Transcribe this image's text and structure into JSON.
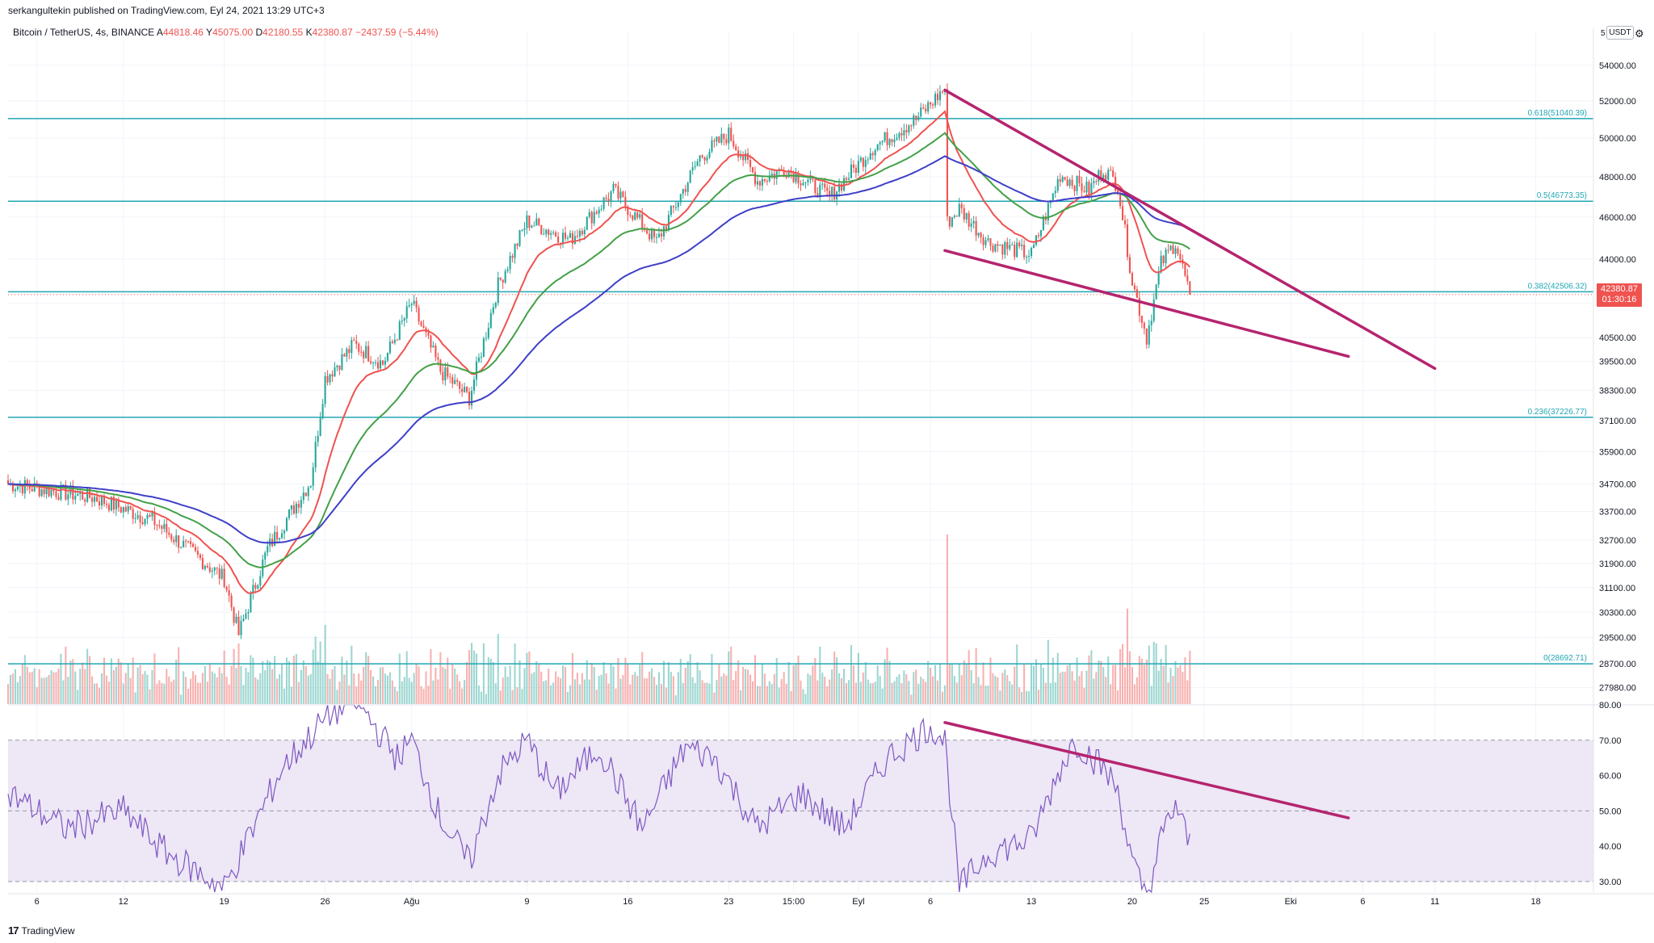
{
  "header": {
    "publisher_text": "serkangultekin published on TradingView.com, Eyl 24, 2021 13:29 UTC+3",
    "symbol": "Bitcoin / TetherUS, 4s, BINANCE",
    "ohlc": {
      "open_label": "A",
      "open": "44818.46",
      "high_label": "Y",
      "high": "45075.00",
      "low_label": "D",
      "low": "42180.55",
      "close_label": "K",
      "close": "42380.87",
      "change": "−2437.59 (−5.44%)"
    }
  },
  "price_axis": {
    "currency": "USDT",
    "scale_top_label": "5",
    "last_price": "42380.87",
    "countdown": "01:30:16"
  },
  "branding": {
    "logo_mark": "17",
    "logo_text": "TradingView"
  },
  "colors": {
    "up": "#26a69a",
    "down": "#ef5350",
    "ema_fast": "#ef5350",
    "ema_mid": "#43a047",
    "ema_slow": "#3f3fc9",
    "fib": "#22a6b3",
    "trend": "#b5246e",
    "rsi": "#7e57c2",
    "rsi_band": "#ede7f6"
  },
  "chart_data": [
    {
      "type": "candlestick",
      "title": "",
      "xlabel": "",
      "ylabel": "",
      "x_ticks": [
        "6",
        "12",
        "19",
        "26",
        "Ağu",
        "9",
        "16",
        "23",
        "15:00",
        "Eyl",
        "6",
        "13",
        "20",
        "25",
        "Eki",
        "6",
        "11",
        "18"
      ],
      "y_ticks": [
        "54000.00",
        "52000.00",
        "50000.00",
        "48000.00",
        "46000.00",
        "44000.00",
        "42000.00",
        "40500.00",
        "39500.00",
        "38300.00",
        "37100.00",
        "35900.00",
        "34700.00",
        "33700.00",
        "32700.00",
        "31900.00",
        "31100.00",
        "30300.00",
        "29500.00",
        "28700.00",
        "27980.00"
      ],
      "y_scale": "log",
      "series": [
        {
          "name": "",
          "kind": "price_path_keypoints",
          "points": [
            [
              "Jul 4",
              34700
            ],
            [
              "Jul 10",
              34200
            ],
            [
              "Jul 14",
              33400
            ],
            [
              "Jul 19",
              31400
            ],
            [
              "Jul 20",
              29600
            ],
            [
              "Jul 22",
              32400
            ],
            [
              "Jul 25",
              34800
            ],
            [
              "Jul 26",
              38800
            ],
            [
              "Jul 28",
              40200
            ],
            [
              "Jul 30",
              39400
            ],
            [
              "Aug 1",
              42000
            ],
            [
              "Aug 3",
              39100
            ],
            [
              "Aug 5",
              38000
            ],
            [
              "Aug 7",
              42800
            ],
            [
              "Aug 9",
              45800
            ],
            [
              "Aug 12",
              44900
            ],
            [
              "Aug 15",
              47300
            ],
            [
              "Aug 18",
              44800
            ],
            [
              "Aug 21",
              49000
            ],
            [
              "Aug 23",
              50200
            ],
            [
              "Aug 25",
              47800
            ],
            [
              "Aug 27",
              48400
            ],
            [
              "Aug 30",
              47000
            ],
            [
              "Sep 2",
              49500
            ],
            [
              "Sep 5",
              51000
            ],
            [
              "Sep 7",
              52700
            ],
            [
              "Sep 7",
              45600
            ],
            [
              "Sep 8",
              46400
            ],
            [
              "Sep 10",
              44800
            ],
            [
              "Sep 13",
              44200
            ],
            [
              "Sep 15",
              48100
            ],
            [
              "Sep 17",
              47300
            ],
            [
              "Sep 18",
              48400
            ],
            [
              "Sep 19",
              47600
            ],
            [
              "Sep 20",
              43000
            ],
            [
              "Sep 21",
              40500
            ],
            [
              "Sep 22",
              43800
            ],
            [
              "Sep 23",
              44800
            ],
            [
              "Sep 24",
              42380.87
            ]
          ]
        },
        {
          "name": "",
          "kind": "ema",
          "color": "#ef5350"
        },
        {
          "name": "",
          "kind": "ema",
          "color": "#43a047"
        },
        {
          "name": "",
          "kind": "ema",
          "color": "#3f3fc9"
        }
      ],
      "fib_levels": [
        {
          "label": "0.618(51040.39)",
          "price": 51040.39
        },
        {
          "label": "0.5(46773.35)",
          "price": 46773.35
        },
        {
          "label": "0.382(42506.32)",
          "price": 42506.32
        },
        {
          "label": "0.236(37226.77)",
          "price": 37226.77
        },
        {
          "label": "0(28692.71)",
          "price": 28692.71
        }
      ],
      "trendlines": [
        {
          "from": [
            "Sep 7",
            52600
          ],
          "to": [
            "Oct 11",
            39200
          ]
        },
        {
          "from": [
            "Sep 7",
            44400
          ],
          "to": [
            "Oct 5",
            39700
          ]
        }
      ],
      "volume_panel": true
    },
    {
      "type": "line",
      "title": "",
      "xlabel": "",
      "ylabel": "",
      "y_ticks": [
        "80.00",
        "70.00",
        "60.00",
        "50.00",
        "40.00",
        "30.00"
      ],
      "ylim": [
        27,
        80
      ],
      "band": [
        30,
        70
      ],
      "midline": 50,
      "series": [
        {
          "name": "",
          "kind": "rsi_keypoints",
          "points": [
            [
              "Jul 4",
              55
            ],
            [
              "Jul 8",
              45
            ],
            [
              "Jul 12",
              50
            ],
            [
              "Jul 15",
              38
            ],
            [
              "Jul 19",
              28
            ],
            [
              "Jul 21",
              45
            ],
            [
              "Jul 23",
              62
            ],
            [
              "Jul 26",
              76
            ],
            [
              "Jul 28",
              82
            ],
            [
              "Jul 31",
              65
            ],
            [
              "Aug 1",
              70
            ],
            [
              "Aug 3",
              48
            ],
            [
              "Aug 5",
              35
            ],
            [
              "Aug 7",
              60
            ],
            [
              "Aug 9",
              70
            ],
            [
              "Aug 11",
              55
            ],
            [
              "Aug 14",
              68
            ],
            [
              "Aug 17",
              45
            ],
            [
              "Aug 20",
              68
            ],
            [
              "Aug 22",
              65
            ],
            [
              "Aug 25",
              45
            ],
            [
              "Aug 28",
              55
            ],
            [
              "Aug 31",
              45
            ],
            [
              "Sep 3",
              65
            ],
            [
              "Sep 6",
              74
            ],
            [
              "Sep 7",
              70
            ],
            [
              "Sep 8",
              28
            ],
            [
              "Sep 10",
              38
            ],
            [
              "Sep 13",
              42
            ],
            [
              "Sep 15",
              62
            ],
            [
              "Sep 16",
              70
            ],
            [
              "Sep 18",
              62
            ],
            [
              "Sep 19",
              56
            ],
            [
              "Sep 20",
              35
            ],
            [
              "Sep 21",
              25
            ],
            [
              "Sep 22",
              42
            ],
            [
              "Sep 23",
              52
            ],
            [
              "Sep 24",
              40
            ]
          ]
        }
      ],
      "trendline": {
        "from": [
          "Sep 7",
          75
        ],
        "to": [
          "Oct 5",
          48
        ]
      }
    }
  ]
}
